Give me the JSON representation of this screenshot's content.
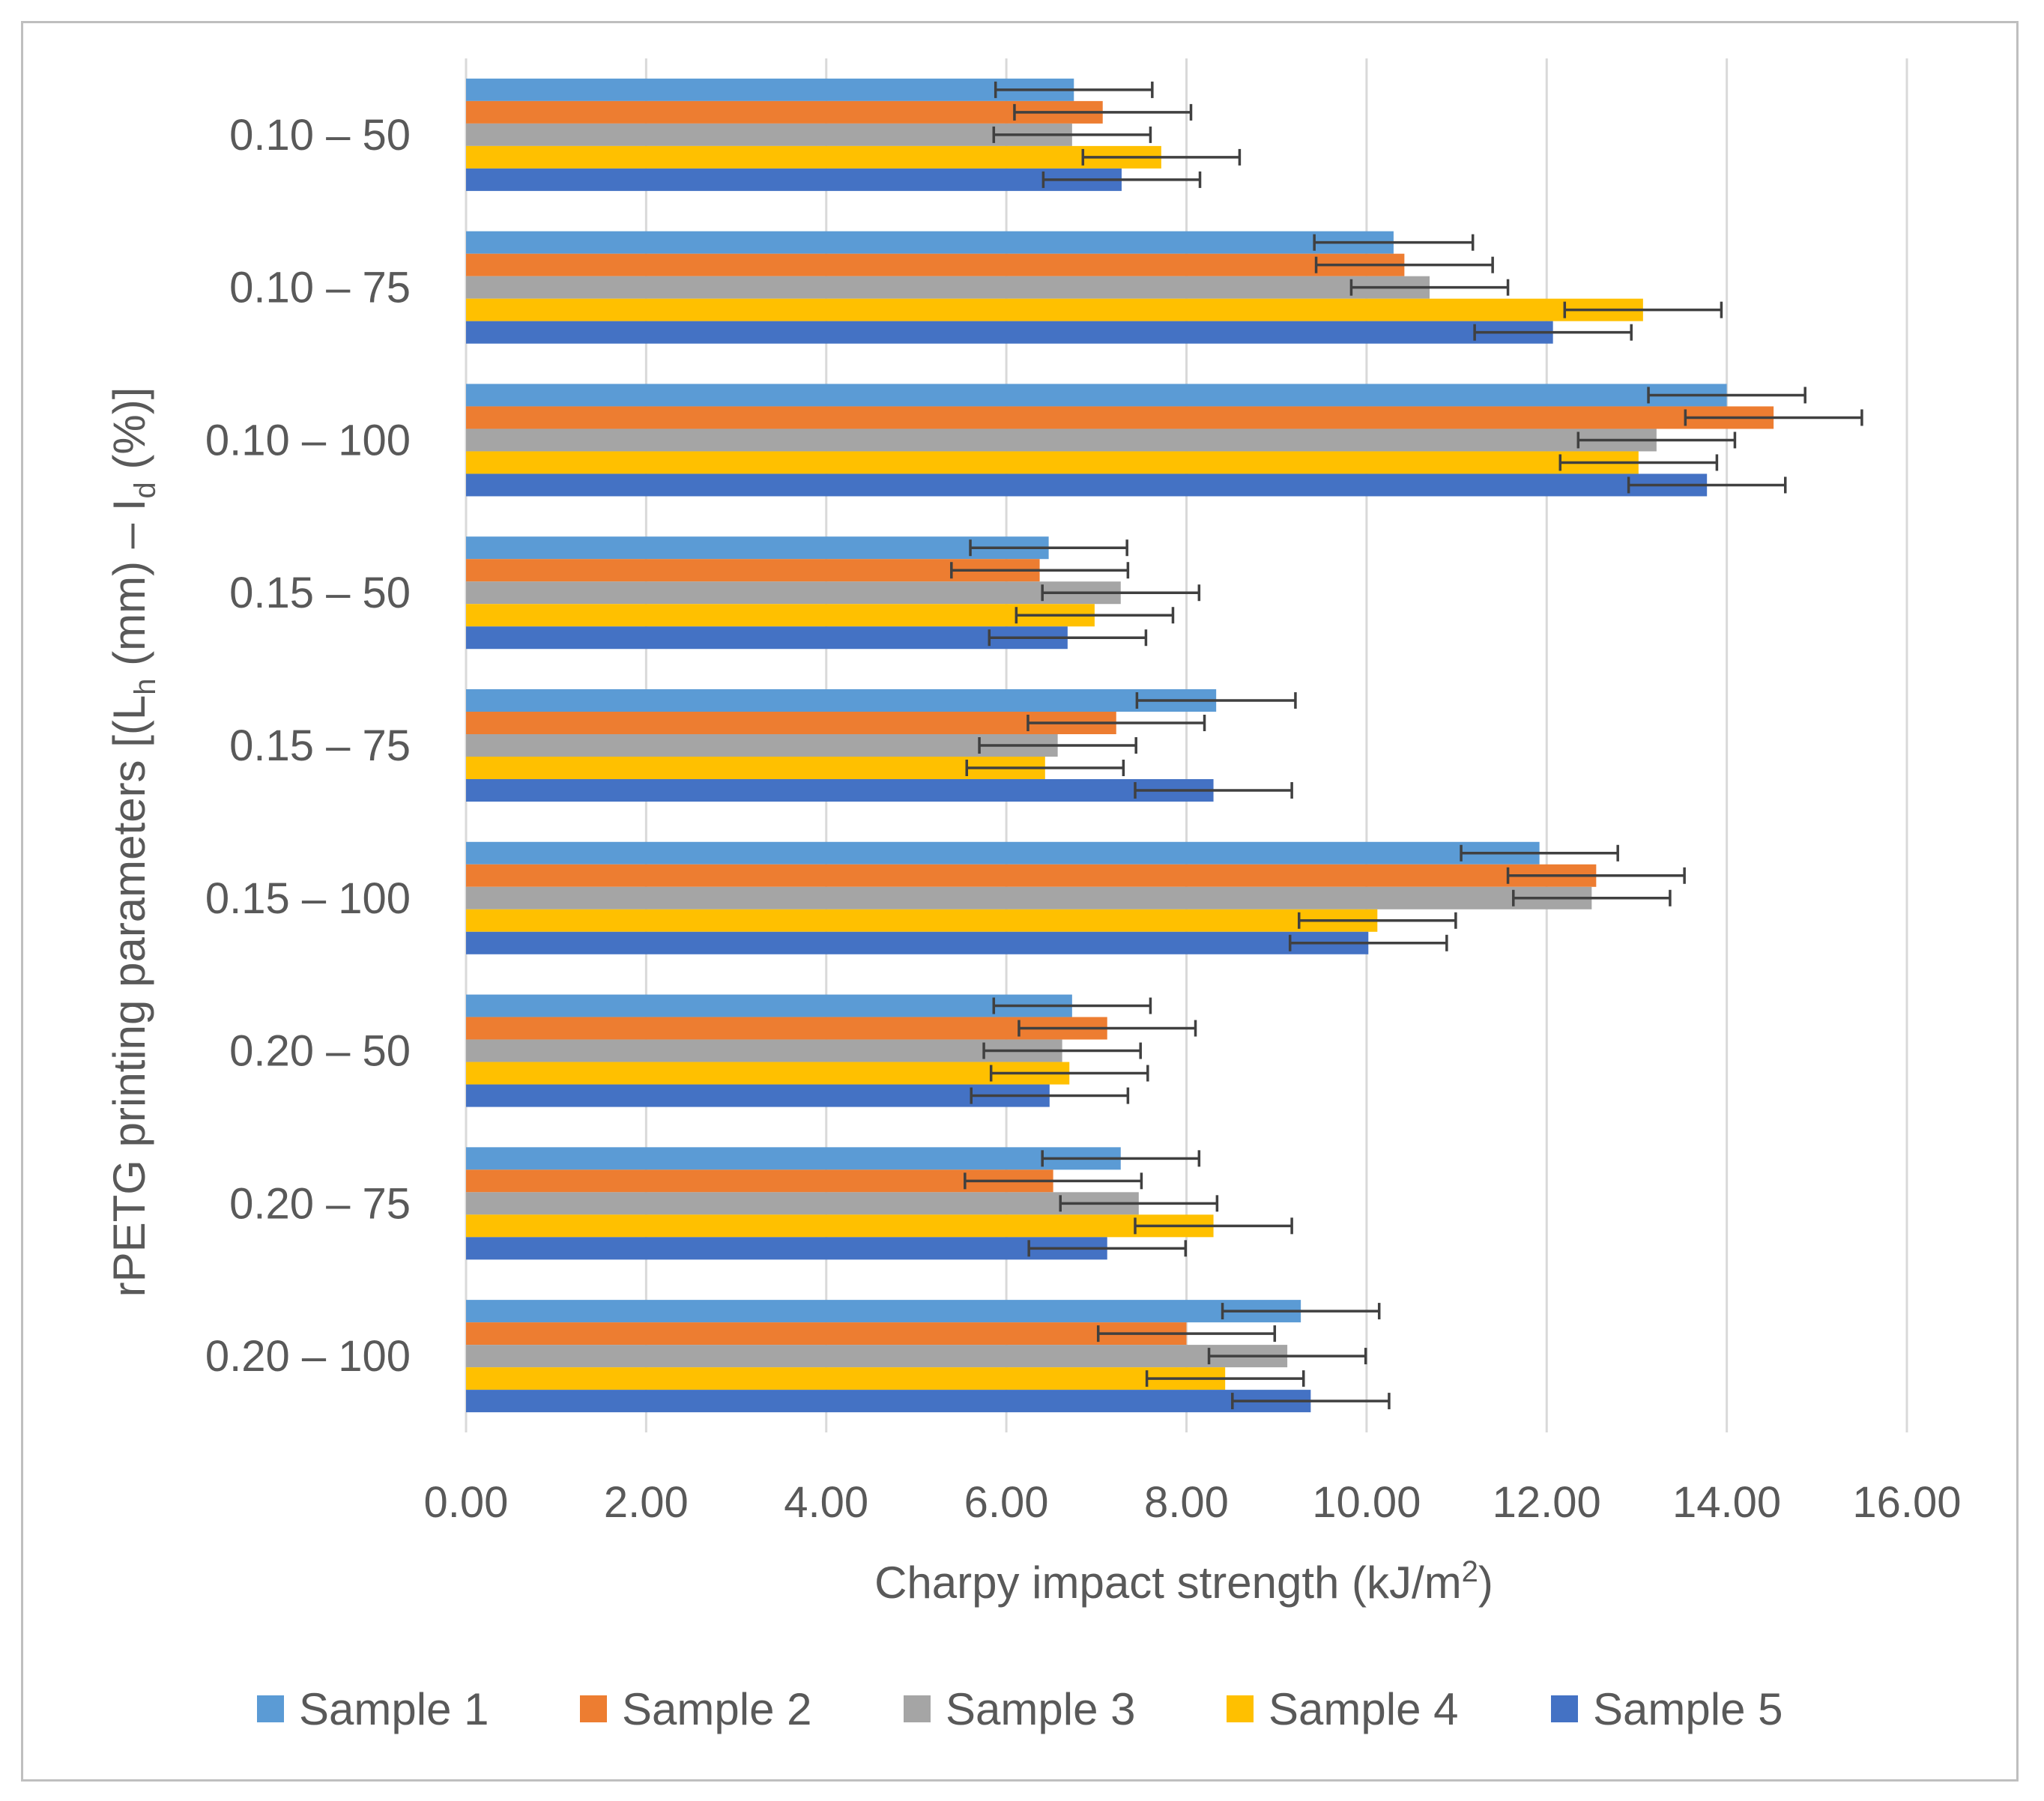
{
  "chart_data": {
    "type": "bar",
    "orientation": "horizontal",
    "title": "",
    "xlabel_parts": {
      "main": "Charpy impact strength (kJ/m",
      "sup": "2",
      "end": ")"
    },
    "ylabel_parts": {
      "p1": "rPETG printing parameters [(L",
      "s1": "h",
      "p2": " (mm) – I",
      "s2": "d",
      "p3": " (%)]"
    },
    "xlim": [
      0,
      16
    ],
    "xticks": [
      0,
      2,
      4,
      6,
      8,
      10,
      12,
      14,
      16
    ],
    "xtick_labels": [
      "0.00",
      "2.00",
      "4.00",
      "6.00",
      "8.00",
      "10.00",
      "12.00",
      "14.00",
      "16.00"
    ],
    "grid": "vertical",
    "legend_position": "bottom",
    "categories": [
      "0.10 – 50",
      "0.10 – 75",
      "0.10 – 100",
      "0.15 – 50",
      "0.15 – 75",
      "0.15 – 100",
      "0.20 – 50",
      "0.20 – 75",
      "0.20 – 100"
    ],
    "series": [
      {
        "name": "Sample 1",
        "color": "#5b9bd5",
        "values": [
          6.75,
          10.3,
          14.0,
          6.47,
          8.33,
          11.92,
          6.73,
          7.27,
          9.27
        ],
        "errors": [
          0.87,
          0.88,
          0.87,
          0.87,
          0.88,
          0.87,
          0.87,
          0.87,
          0.87
        ]
      },
      {
        "name": "Sample 2",
        "color": "#ed7d31",
        "values": [
          7.07,
          10.42,
          14.52,
          6.37,
          7.22,
          12.55,
          7.12,
          6.52,
          8.0
        ],
        "errors": [
          0.98,
          0.98,
          0.98,
          0.98,
          0.98,
          0.98,
          0.98,
          0.98,
          0.98
        ]
      },
      {
        "name": "Sample 3",
        "color": "#a5a5a5",
        "values": [
          6.73,
          10.7,
          13.22,
          7.27,
          6.57,
          12.5,
          6.62,
          7.47,
          9.12
        ],
        "errors": [
          0.87,
          0.87,
          0.87,
          0.87,
          0.87,
          0.87,
          0.87,
          0.87,
          0.87
        ]
      },
      {
        "name": "Sample 4",
        "color": "#ffc000",
        "values": [
          7.72,
          13.07,
          13.02,
          6.98,
          6.43,
          10.12,
          6.7,
          8.3,
          8.43
        ],
        "errors": [
          0.87,
          0.87,
          0.87,
          0.87,
          0.87,
          0.87,
          0.87,
          0.87,
          0.87
        ]
      },
      {
        "name": "Sample 5",
        "color": "#4472c4",
        "values": [
          7.28,
          12.07,
          13.78,
          6.68,
          8.3,
          10.02,
          6.48,
          7.12,
          9.38
        ],
        "errors": [
          0.87,
          0.87,
          0.87,
          0.87,
          0.87,
          0.87,
          0.87,
          0.87,
          0.87
        ]
      }
    ]
  }
}
